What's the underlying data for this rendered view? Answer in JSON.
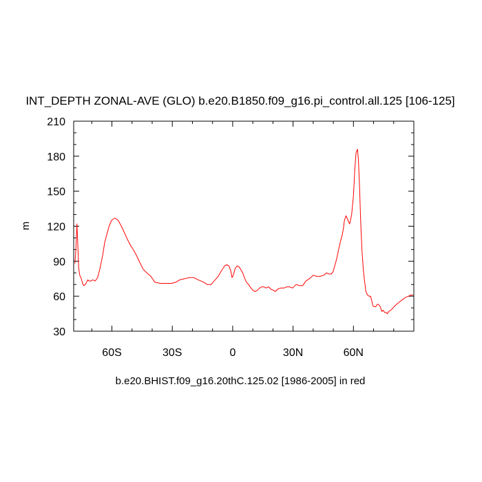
{
  "chart_data": {
    "type": "line",
    "title": "INT_DEPTH ZONAL-AVE (GLO) b.e20.B1850.f09_g16.pi_control.all.125 [106-125]",
    "xlabel": "",
    "ylabel": "m",
    "subtitle": "b.e20.BHIST.f09_g16.20thC.125.02 [1986-2005] in red",
    "xlim": [
      -79,
      90
    ],
    "ylim": [
      30,
      210
    ],
    "yticks": [
      30,
      60,
      90,
      120,
      150,
      180,
      210
    ],
    "xticks": [
      {
        "value": -60,
        "label": "60S"
      },
      {
        "value": -30,
        "label": "30S"
      },
      {
        "value": 0,
        "label": "0"
      },
      {
        "value": 30,
        "label": "30N"
      },
      {
        "value": 60,
        "label": "60N"
      }
    ],
    "grid": false,
    "series": [
      {
        "color": "#ff0000",
        "x": [
          -78.4,
          -77.9,
          -77.4,
          -77.0,
          -76.5,
          -76.0,
          -75.2,
          -74.6,
          -74.0,
          -73.2,
          -72.0,
          -71.4,
          -70.6,
          -69.5,
          -68.3,
          -67.1,
          -65.9,
          -64.5,
          -63.6,
          -62.5,
          -61.4,
          -60.2,
          -58.5,
          -56.9,
          -55.3,
          -53.7,
          -52.4,
          -50.9,
          -49.4,
          -47.8,
          -46.2,
          -44.4,
          -42.7,
          -40.6,
          -38.7,
          -36.1,
          -34.3,
          -32.3,
          -30.4,
          -28.2,
          -26.3,
          -23.8,
          -21.6,
          -19.4,
          -17.1,
          -14.4,
          -12.6,
          -10.8,
          -9.2,
          -7.2,
          -5.5,
          -4.0,
          -2.9,
          -1.9,
          -1.0,
          -0.3,
          0.3,
          1.3,
          2.2,
          3.2,
          4.0,
          5.0,
          5.8,
          6.8,
          7.9,
          9.1,
          10.1,
          11.1,
          12.2,
          13.4,
          14.5,
          15.6,
          16.7,
          17.8,
          19.0,
          20.3,
          21.2,
          22.3,
          23.8,
          25.5,
          26.9,
          28.2,
          29.8,
          31.5,
          33.4,
          34.7,
          36.4,
          38.1,
          40.1,
          41.8,
          43.5,
          45.3,
          46.6,
          47.9,
          48.9,
          49.9,
          50.7,
          51.7,
          52.5,
          53.3,
          54.0,
          54.5,
          55.0,
          55.5,
          56.3,
          57.3,
          58.1,
          59.1,
          60.0,
          60.7,
          61.3,
          62.0,
          62.5,
          63.0,
          63.6,
          64.2,
          64.9,
          65.5,
          66.2,
          67.0,
          67.8,
          68.5,
          69.1,
          69.6,
          70.2,
          71.1,
          71.8,
          72.4,
          73.3,
          74.1,
          74.8,
          75.5,
          76.2,
          76.8,
          77.6,
          78.5,
          79.2,
          80.1,
          81.4,
          82.8,
          84.3,
          85.9,
          87.3,
          88.6,
          89.7
        ],
        "y": [
          88,
          100,
          122,
          107,
          84,
          78,
          75,
          71,
          69,
          70,
          74,
          73,
          73,
          74,
          73,
          76,
          84,
          96,
          106,
          113,
          120,
          125,
          127,
          125,
          120,
          114,
          109,
          104,
          100,
          95,
          89,
          83,
          80,
          77,
          72,
          71,
          71,
          71,
          71,
          72,
          74,
          75,
          76,
          76,
          74,
          72,
          70,
          70,
          73,
          77,
          82,
          86,
          87,
          86,
          82,
          76,
          78,
          84,
          86,
          85,
          83,
          80,
          76,
          72,
          70,
          67,
          65,
          64,
          65,
          67,
          68,
          68,
          67,
          68,
          66,
          65,
          64,
          66,
          67,
          67,
          68,
          68,
          67,
          70,
          69,
          69,
          73,
          75,
          78,
          77,
          77,
          78,
          80,
          79,
          79,
          81,
          86,
          92,
          99,
          105,
          110,
          113,
          118,
          125,
          129,
          125,
          122,
          130,
          146,
          170,
          183,
          186,
          176,
          155,
          124,
          100,
          83,
          73,
          64,
          61,
          60,
          60,
          56,
          52,
          51,
          51,
          53,
          53,
          51,
          47,
          48,
          46,
          46,
          45,
          47,
          48,
          49,
          51,
          53,
          55,
          57,
          59,
          60,
          61,
          61
        ]
      }
    ]
  }
}
